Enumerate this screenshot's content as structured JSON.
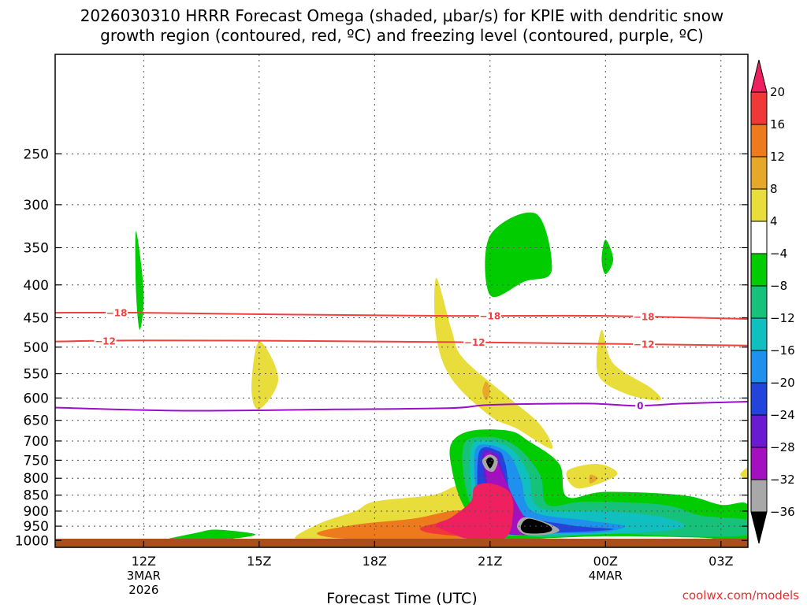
{
  "chart_data": {
    "type": "heatmap",
    "title_line1": "2026030310 HRRR Forecast Omega (shaded, μbar/s) for KPIE with dendritic snow",
    "title_line2": "growth region (contoured, red, ºC) and freezing level (contoured, purple, ºC)",
    "xlabel": "Forecast Time (UTC)",
    "x_range_hours": [
      9.7,
      27.7
    ],
    "x_ticks": [
      {
        "hour": 12,
        "label": "12Z",
        "sub1": "3MAR",
        "sub2": "2026"
      },
      {
        "hour": 15,
        "label": "15Z",
        "sub1": "",
        "sub2": ""
      },
      {
        "hour": 18,
        "label": "18Z",
        "sub1": "",
        "sub2": ""
      },
      {
        "hour": 21,
        "label": "21Z",
        "sub1": "",
        "sub2": ""
      },
      {
        "hour": 24,
        "label": "00Z",
        "sub1": "4MAR",
        "sub2": ""
      },
      {
        "hour": 27,
        "label": "03Z",
        "sub1": "",
        "sub2": ""
      }
    ],
    "y_range_hpa": [
      1025,
      175
    ],
    "y_ticks": [
      250,
      300,
      350,
      400,
      450,
      500,
      550,
      600,
      650,
      700,
      750,
      800,
      850,
      900,
      950,
      1000
    ],
    "colorbar": {
      "labels": [
        "20",
        "16",
        "12",
        "8",
        "4",
        "−4",
        "−8",
        "−12",
        "−16",
        "−20",
        "−24",
        "−28",
        "−32",
        "−36"
      ],
      "colors": [
        "#ee2060",
        "#f03838",
        "#ee7a1e",
        "#e6a82a",
        "#e8dd3a",
        "#ffffff",
        "#00cc00",
        "#16c27a",
        "#10c0c0",
        "#1e90ee",
        "#2244dd",
        "#6a1ad0",
        "#a410c0",
        "#a8a8a8",
        "#000000"
      ]
    },
    "contours": [
      {
        "name": "dgz-minus18",
        "label": "−18",
        "color": "#f04040",
        "points": [
          [
            9.7,
            442
          ],
          [
            12,
            442
          ],
          [
            16,
            445
          ],
          [
            20,
            447
          ],
          [
            24,
            447
          ],
          [
            27.7,
            452
          ]
        ],
        "label_hours": [
          11.3,
          21.0,
          25.0
        ]
      },
      {
        "name": "dgz-minus12",
        "label": "−12",
        "color": "#f04040",
        "points": [
          [
            9.7,
            490
          ],
          [
            12,
            488
          ],
          [
            16,
            489
          ],
          [
            20,
            491
          ],
          [
            24,
            494
          ],
          [
            27.7,
            497
          ]
        ],
        "label_hours": [
          11.0,
          20.6,
          25.0
        ]
      },
      {
        "name": "freezing-level",
        "label": "0",
        "color": "#9a10c8",
        "points": [
          [
            9.7,
            621
          ],
          [
            13,
            628
          ],
          [
            17,
            625
          ],
          [
            20,
            622
          ],
          [
            21,
            615
          ],
          [
            23.5,
            612
          ],
          [
            24.8,
            617
          ],
          [
            26,
            612
          ],
          [
            27.7,
            608
          ]
        ],
        "label_hours": [
          24.9
        ]
      }
    ],
    "omega_regions": [
      {
        "name": "green-upper-left",
        "color": "#00cc00",
        "points": [
          [
            11.8,
            330
          ],
          [
            12.0,
            410
          ],
          [
            11.9,
            470
          ],
          [
            11.8,
            410
          ]
        ]
      },
      {
        "name": "green-lower-left",
        "color": "#00cc00",
        "points": [
          [
            12.5,
            1000
          ],
          [
            13.4,
            972
          ],
          [
            13.9,
            962
          ],
          [
            14.9,
            978
          ],
          [
            14.2,
            995
          ],
          [
            13.2,
            1003
          ]
        ]
      },
      {
        "name": "yellow-mid-left",
        "color": "#e8dd3a",
        "points": [
          [
            15.0,
            490
          ],
          [
            15.5,
            560
          ],
          [
            15.0,
            625
          ],
          [
            14.8,
            580
          ]
        ]
      },
      {
        "name": "green-upper-mid",
        "color": "#00cc00",
        "points": [
          [
            21.0,
            335
          ],
          [
            22.2,
            310
          ],
          [
            22.6,
            380
          ],
          [
            21.9,
            395
          ],
          [
            21.0,
            415
          ]
        ]
      },
      {
        "name": "green-upper-right-small",
        "color": "#00cc00",
        "points": [
          [
            24.0,
            340
          ],
          [
            24.2,
            365
          ],
          [
            24.0,
            385
          ],
          [
            23.9,
            365
          ]
        ]
      },
      {
        "name": "yellow-diagonal-mid",
        "color": "#e8dd3a",
        "points": [
          [
            19.6,
            390
          ],
          [
            20.0,
            470
          ],
          [
            20.3,
            520
          ],
          [
            21.5,
            600
          ],
          [
            22.3,
            660
          ],
          [
            22.6,
            720
          ],
          [
            21.7,
            670
          ],
          [
            21.0,
            640
          ],
          [
            20.0,
            560
          ],
          [
            19.6,
            480
          ]
        ]
      },
      {
        "name": "orange-small-mid",
        "color": "#e6a82a",
        "points": [
          [
            20.9,
            565
          ],
          [
            21.0,
            585
          ],
          [
            20.9,
            605
          ],
          [
            20.8,
            585
          ]
        ]
      },
      {
        "name": "yellow-diagonal-right",
        "color": "#e8dd3a",
        "points": [
          [
            23.9,
            470
          ],
          [
            24.2,
            530
          ],
          [
            25.2,
            580
          ],
          [
            25.4,
            605
          ],
          [
            24.5,
            590
          ],
          [
            23.8,
            550
          ]
        ]
      },
      {
        "name": "yellow-small-right",
        "color": "#e8dd3a",
        "points": [
          [
            23.0,
            780
          ],
          [
            23.8,
            760
          ],
          [
            24.3,
            790
          ],
          [
            23.3,
            830
          ]
        ]
      },
      {
        "name": "orange-small-right",
        "color": "#e6a82a",
        "points": [
          [
            23.6,
            790
          ],
          [
            23.8,
            800
          ],
          [
            23.6,
            815
          ]
        ]
      },
      {
        "name": "yellow-edge-right",
        "color": "#e8dd3a",
        "points": [
          [
            27.7,
            770
          ],
          [
            27.5,
            790
          ],
          [
            27.7,
            800
          ]
        ]
      },
      {
        "name": "yellow-lowlevel-band",
        "color": "#e8dd3a",
        "points": [
          [
            16.0,
            1000
          ],
          [
            16.5,
            945
          ],
          [
            17.5,
            900
          ],
          [
            18.0,
            870
          ],
          [
            19.5,
            850
          ],
          [
            20.3,
            830
          ],
          [
            20.5,
            1010
          ],
          [
            18.0,
            1010
          ]
        ]
      },
      {
        "name": "orange-lowlevel-band",
        "color": "#ee7a1e",
        "points": [
          [
            16.5,
            975
          ],
          [
            17.5,
            945
          ],
          [
            19.0,
            925
          ],
          [
            20.3,
            900
          ],
          [
            20.5,
            990
          ],
          [
            17.5,
            995
          ]
        ]
      },
      {
        "name": "red-lowlevel-band",
        "color": "#f03838",
        "points": [
          [
            19.2,
            955
          ],
          [
            20.0,
            930
          ],
          [
            20.5,
            920
          ],
          [
            20.5,
            980
          ],
          [
            19.5,
            975
          ]
        ]
      },
      {
        "name": "green-lowlevel-envelope",
        "color": "#00cc00",
        "points": [
          [
            20.0,
            705
          ],
          [
            20.5,
            675
          ],
          [
            21.5,
            675
          ],
          [
            22.0,
            700
          ],
          [
            22.8,
            760
          ],
          [
            23.0,
            855
          ],
          [
            24.0,
            840
          ],
          [
            26.0,
            850
          ],
          [
            27.0,
            880
          ],
          [
            27.7,
            880
          ],
          [
            27.7,
            1000
          ],
          [
            26.5,
            990
          ],
          [
            24.0,
            985
          ],
          [
            22.0,
            995
          ],
          [
            21.0,
            1000
          ],
          [
            20.3,
            880
          ],
          [
            20.0,
            770
          ]
        ]
      },
      {
        "name": "teal-lowlevel",
        "color": "#16c27a",
        "points": [
          [
            20.3,
            715
          ],
          [
            21.0,
            690
          ],
          [
            21.7,
            715
          ],
          [
            22.3,
            790
          ],
          [
            22.5,
            880
          ],
          [
            23.5,
            870
          ],
          [
            25.5,
            880
          ],
          [
            26.5,
            915
          ],
          [
            27.7,
            930
          ],
          [
            27.7,
            980
          ],
          [
            26.0,
            985
          ],
          [
            24.0,
            975
          ],
          [
            22.0,
            985
          ],
          [
            20.6,
            900
          ]
        ]
      },
      {
        "name": "cyan-lowlevel",
        "color": "#10c0c0",
        "points": [
          [
            20.5,
            720
          ],
          [
            21.0,
            700
          ],
          [
            21.6,
            725
          ],
          [
            22.0,
            790
          ],
          [
            22.3,
            890
          ],
          [
            24.0,
            900
          ],
          [
            25.5,
            920
          ],
          [
            26.0,
            955
          ],
          [
            24.5,
            975
          ],
          [
            22.5,
            980
          ],
          [
            21.0,
            975
          ],
          [
            20.6,
            900
          ]
        ]
      },
      {
        "name": "blue-lowlevel",
        "color": "#1e90ee",
        "points": [
          [
            20.6,
            730
          ],
          [
            21.0,
            710
          ],
          [
            21.5,
            735
          ],
          [
            21.8,
            800
          ],
          [
            22.1,
            900
          ],
          [
            23.5,
            930
          ],
          [
            24.5,
            950
          ],
          [
            23.8,
            972
          ],
          [
            22.3,
            975
          ],
          [
            21.0,
            975
          ],
          [
            20.7,
            900
          ]
        ]
      },
      {
        "name": "darkblue-lowlevel",
        "color": "#2244dd",
        "points": [
          [
            20.7,
            735
          ],
          [
            21.2,
            725
          ],
          [
            21.4,
            760
          ],
          [
            21.7,
            900
          ],
          [
            23.0,
            945
          ],
          [
            24.2,
            960
          ],
          [
            23.2,
            970
          ],
          [
            21.5,
            975
          ],
          [
            20.8,
            960
          ]
        ]
      },
      {
        "name": "purple-lowlevel",
        "color": "#6a1ad0",
        "points": [
          [
            20.8,
            740
          ],
          [
            21.2,
            735
          ],
          [
            21.3,
            770
          ],
          [
            21.8,
            915
          ],
          [
            22.6,
            950
          ],
          [
            22.5,
            975
          ],
          [
            21.5,
            978
          ],
          [
            21.1,
            940
          ]
        ]
      },
      {
        "name": "violet-lowlevel",
        "color": "#a410c0",
        "points": [
          [
            20.85,
            745
          ],
          [
            21.15,
            740
          ],
          [
            21.25,
            770
          ],
          [
            21.9,
            920
          ],
          [
            22.5,
            955
          ],
          [
            22.3,
            977
          ],
          [
            21.7,
            978
          ],
          [
            21.2,
            945
          ]
        ]
      },
      {
        "name": "gray-core-upper",
        "color": "#a8a8a8",
        "points": [
          [
            20.8,
            750
          ],
          [
            21.0,
            735
          ],
          [
            21.2,
            750
          ],
          [
            21.1,
            780
          ],
          [
            20.9,
            775
          ]
        ]
      },
      {
        "name": "black-core-upper",
        "color": "#000000",
        "points": [
          [
            20.9,
            752
          ],
          [
            21.0,
            742
          ],
          [
            21.1,
            752
          ],
          [
            21.0,
            772
          ]
        ]
      },
      {
        "name": "gray-core-lower",
        "color": "#a8a8a8",
        "points": [
          [
            21.9,
            920
          ],
          [
            22.5,
            940
          ],
          [
            22.8,
            965
          ],
          [
            22.4,
            980
          ],
          [
            21.9,
            978
          ],
          [
            21.7,
            950
          ]
        ]
      },
      {
        "name": "black-core-lower",
        "color": "#000000",
        "points": [
          [
            22.0,
            925
          ],
          [
            22.5,
            945
          ],
          [
            22.6,
            965
          ],
          [
            22.3,
            975
          ],
          [
            21.9,
            972
          ],
          [
            21.8,
            950
          ]
        ]
      },
      {
        "name": "magenta-core",
        "color": "#ee2060",
        "points": [
          [
            19.6,
            945
          ],
          [
            20.0,
            920
          ],
          [
            20.5,
            870
          ],
          [
            20.6,
            825
          ],
          [
            21.0,
            815
          ],
          [
            21.5,
            840
          ],
          [
            21.6,
            900
          ],
          [
            21.4,
            990
          ],
          [
            20.5,
            995
          ],
          [
            20.0,
            975
          ]
        ]
      }
    ],
    "ground_color": "#a84f1e"
  },
  "credit": "coolwx.com/models"
}
